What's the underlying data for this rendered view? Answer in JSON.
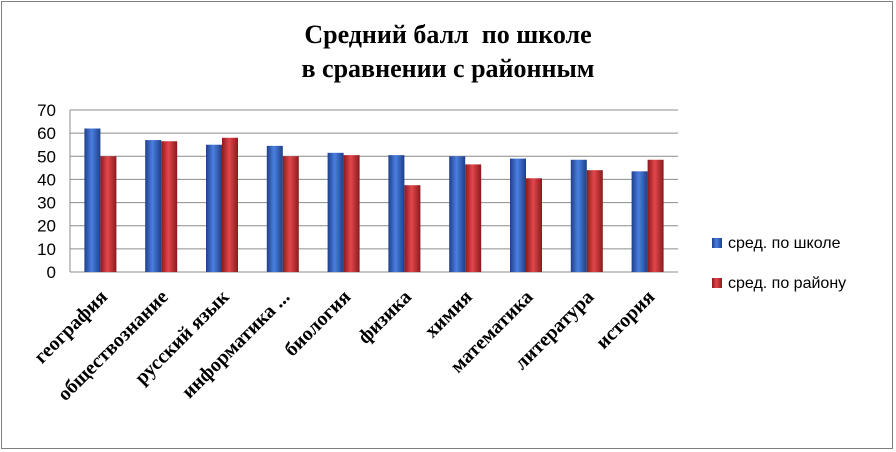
{
  "chart_data": {
    "type": "bar",
    "title_line1": "Средний балл  по школе",
    "title_line2": "в сравнении с районным",
    "categories": [
      "география",
      "обществознание",
      "русский язык",
      "информатика ...",
      "биология",
      "физика",
      "химия",
      "математика",
      "литература",
      "история"
    ],
    "series": [
      {
        "name": "сред. по школе",
        "color": "#2e5eb8",
        "values": [
          62,
          57,
          55,
          54.5,
          51.5,
          50.5,
          50,
          49,
          48.5,
          43.5
        ]
      },
      {
        "name": "сред. по району",
        "color": "#c0262b",
        "values": [
          50,
          56.5,
          58,
          50,
          50.5,
          37.5,
          46.5,
          40.5,
          44,
          48.5
        ]
      }
    ],
    "ylim": [
      0,
      70
    ],
    "yticks": [
      0,
      10,
      20,
      30,
      40,
      50,
      60,
      70
    ],
    "grid": true,
    "legend_position": "right"
  }
}
